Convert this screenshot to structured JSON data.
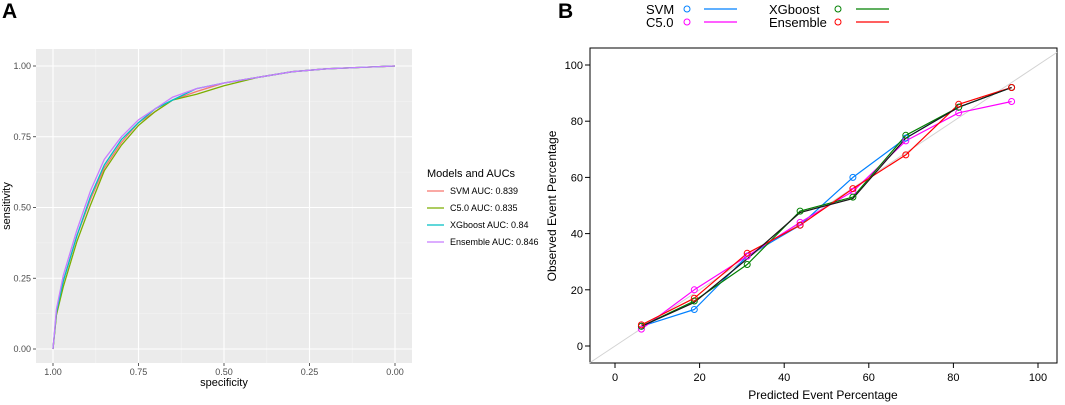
{
  "panels": {
    "a_label": "A",
    "b_label": "B"
  },
  "chart_data": [
    {
      "type": "line",
      "subtype": "roc",
      "xlabel": "specificity",
      "ylabel": "sensitivity",
      "xlim": [
        1.0,
        0.0
      ],
      "ylim": [
        0.0,
        1.0
      ],
      "x_ticks": [
        1.0,
        0.75,
        0.5,
        0.25,
        0.0
      ],
      "x_tick_labels": [
        "1.00",
        "0.75",
        "0.50",
        "0.25",
        "0.00"
      ],
      "y_ticks": [
        0.0,
        0.25,
        0.5,
        0.75,
        1.0
      ],
      "y_tick_labels": [
        "0.00",
        "0.25",
        "0.50",
        "0.75",
        "1.00"
      ],
      "grid": true,
      "legend_title": "Models and AUCs",
      "legend_position": "right",
      "series": [
        {
          "name": "SVM",
          "label": "SVM AUC: 0.839",
          "color": "#f8766d",
          "x": [
            1.0,
            0.99,
            0.97,
            0.93,
            0.89,
            0.85,
            0.8,
            0.75,
            0.7,
            0.65,
            0.58,
            0.5,
            0.4,
            0.3,
            0.2,
            0.1,
            0.0
          ],
          "y": [
            0.0,
            0.12,
            0.24,
            0.4,
            0.53,
            0.64,
            0.73,
            0.8,
            0.84,
            0.88,
            0.91,
            0.94,
            0.96,
            0.98,
            0.99,
            0.995,
            1.0
          ]
        },
        {
          "name": "C5.0",
          "label": "C5.0 AUC: 0.835",
          "color": "#7cae00",
          "x": [
            1.0,
            0.99,
            0.97,
            0.93,
            0.89,
            0.85,
            0.8,
            0.75,
            0.7,
            0.65,
            0.58,
            0.5,
            0.4,
            0.3,
            0.2,
            0.1,
            0.0
          ],
          "y": [
            0.0,
            0.12,
            0.22,
            0.38,
            0.51,
            0.63,
            0.72,
            0.79,
            0.84,
            0.88,
            0.9,
            0.93,
            0.96,
            0.98,
            0.99,
            0.995,
            1.0
          ]
        },
        {
          "name": "XGboost",
          "label": "XGboost AUC: 0.84",
          "color": "#00bfc4",
          "x": [
            1.0,
            0.99,
            0.97,
            0.93,
            0.89,
            0.85,
            0.8,
            0.75,
            0.7,
            0.65,
            0.58,
            0.5,
            0.4,
            0.3,
            0.2,
            0.1,
            0.0
          ],
          "y": [
            0.0,
            0.13,
            0.24,
            0.4,
            0.54,
            0.65,
            0.74,
            0.8,
            0.85,
            0.88,
            0.92,
            0.94,
            0.96,
            0.98,
            0.99,
            0.995,
            1.0
          ]
        },
        {
          "name": "Ensemble",
          "label": "Ensemble AUC: 0.846",
          "color": "#c77cff",
          "x": [
            1.0,
            0.99,
            0.97,
            0.93,
            0.89,
            0.85,
            0.8,
            0.75,
            0.7,
            0.65,
            0.58,
            0.5,
            0.4,
            0.3,
            0.2,
            0.1,
            0.0
          ],
          "y": [
            0.0,
            0.14,
            0.26,
            0.42,
            0.56,
            0.67,
            0.75,
            0.81,
            0.85,
            0.89,
            0.92,
            0.94,
            0.96,
            0.98,
            0.99,
            0.995,
            1.0
          ]
        }
      ]
    },
    {
      "type": "line",
      "subtype": "calibration",
      "xlabel": "Predicted Event Percentage",
      "ylabel": "Observed Event Percentage",
      "xlim": [
        -6,
        106
      ],
      "ylim": [
        -6,
        106
      ],
      "x_ticks": [
        0,
        20,
        40,
        60,
        80,
        100
      ],
      "y_ticks": [
        0,
        20,
        40,
        60,
        80,
        100
      ],
      "reference_line": "y = x (light grey diagonal)",
      "legend_position": "top",
      "x": [
        6.25,
        18.75,
        31.25,
        43.75,
        56.25,
        68.75,
        81.25,
        93.75
      ],
      "series": [
        {
          "name": "SVM",
          "color": "#0080ff",
          "values": [
            7,
            13,
            32,
            43,
            60,
            74,
            85,
            92
          ]
        },
        {
          "name": "C5.0",
          "color": "#ff00ff",
          "values": [
            6,
            20,
            32,
            44,
            55,
            73,
            83,
            87
          ]
        },
        {
          "name": "XGboost",
          "color": "#008000",
          "values": [
            7,
            16,
            29,
            48,
            53,
            75,
            85,
            92
          ]
        },
        {
          "name": "Ensemble",
          "color": "#ff0000",
          "values": [
            7.5,
            17,
            33,
            43,
            56,
            68,
            86,
            92
          ]
        }
      ],
      "overlay_line": {
        "name": "",
        "color": "#1a1a1a",
        "values": [
          7,
          15.5,
          31,
          47.5,
          52.5,
          74,
          85,
          92
        ]
      }
    }
  ]
}
